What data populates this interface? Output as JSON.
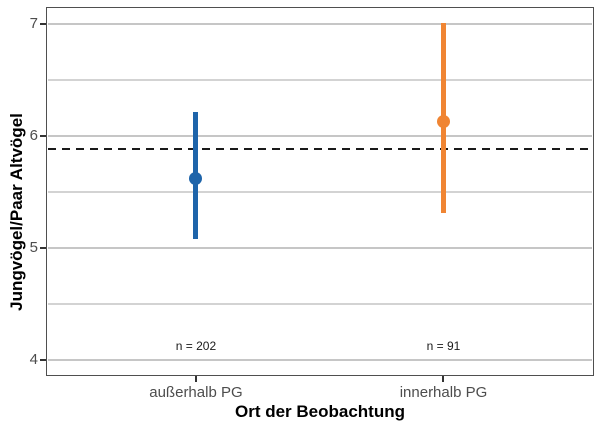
{
  "chart_data": {
    "type": "scatter",
    "subtype": "pointrange-with-error-bars",
    "title": "",
    "xlabel": "Ort der Beobachtung",
    "ylabel": "Jungvögel/Paar Altvögel",
    "categories": [
      "außerhalb PG",
      "innerhalb PG"
    ],
    "series": [
      {
        "name": "außerhalb PG",
        "mean": 5.62,
        "lower": 5.08,
        "upper": 6.21,
        "n": 202,
        "n_label": "n = 202",
        "color": "#1e64aa"
      },
      {
        "name": "innerhalb PG",
        "mean": 6.13,
        "lower": 5.31,
        "upper": 7.01,
        "n": 91,
        "n_label": "n = 91",
        "color": "#f08533"
      }
    ],
    "reference_line": {
      "value": 5.88,
      "style": "dashed",
      "color": "#1a1a1a"
    },
    "annotation_y": 4.13,
    "axes": {
      "ylim": [
        3.87,
        7.14
      ],
      "yticks_major": [
        7,
        6,
        5,
        4
      ],
      "yticks_minor": [
        6.5,
        5.5,
        4.5
      ],
      "grid": true,
      "legend": "none"
    }
  },
  "colors": {
    "background": "#ffffff",
    "grid_major": "#c6c6c6",
    "grid_minor": "#d3d3d3",
    "panel_border": "#4f4f4f",
    "tick_mark": "#333333",
    "tick_label": "#4d4d4d",
    "axis_title": "#000000",
    "annotation_text": "#1a1a1a"
  }
}
